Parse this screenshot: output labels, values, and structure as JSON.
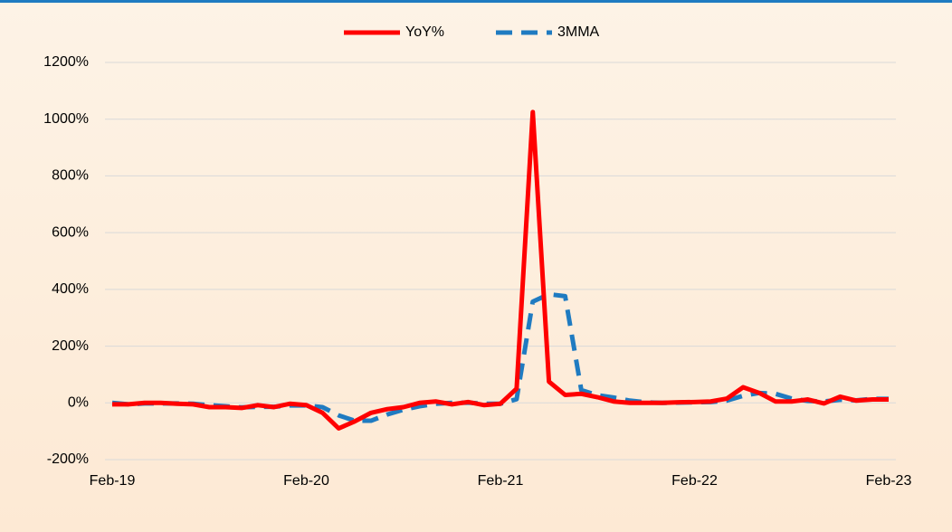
{
  "chart_data": {
    "type": "line",
    "categories": [
      "Feb-19",
      null,
      null,
      null,
      null,
      null,
      null,
      null,
      null,
      null,
      null,
      null,
      "Feb-20",
      null,
      null,
      null,
      null,
      null,
      null,
      null,
      null,
      null,
      null,
      null,
      "Feb-21",
      null,
      null,
      null,
      null,
      null,
      null,
      null,
      null,
      null,
      null,
      null,
      "Feb-22",
      null,
      null,
      null,
      null,
      null,
      null,
      null,
      null,
      null,
      null,
      null,
      "Feb-23"
    ],
    "series": [
      {
        "name": "YoY%",
        "color": "#ff0000",
        "dash": false,
        "values": [
          -5,
          -5,
          0,
          0,
          -3,
          -5,
          -15,
          -15,
          -18,
          -8,
          -15,
          -3,
          -8,
          -35,
          -90,
          -65,
          -35,
          -22,
          -15,
          0,
          5,
          -5,
          3,
          -8,
          -3,
          50,
          1025,
          75,
          28,
          32,
          20,
          5,
          0,
          0,
          0,
          2,
          3,
          5,
          15,
          55,
          35,
          5,
          5,
          12,
          -2,
          22,
          8,
          12,
          12
        ]
      },
      {
        "name": "3MMA",
        "color": "#1f7bc1",
        "dash": true,
        "values": [
          0,
          -5,
          -2,
          -2,
          -2,
          -3,
          -8,
          -12,
          -16,
          -14,
          -14,
          -9,
          -9,
          -15,
          -44,
          -63,
          -63,
          -41,
          -24,
          -12,
          -3,
          0,
          1,
          -3,
          -3,
          13,
          357,
          383,
          376,
          45,
          27,
          19,
          8,
          2,
          0,
          1,
          2,
          3,
          8,
          25,
          35,
          32,
          15,
          7,
          5,
          11,
          9,
          14,
          14
        ]
      }
    ],
    "ylim": [
      -200,
      1200
    ],
    "yticks": [
      {
        "value": -200,
        "label": "-200%"
      },
      {
        "value": 0,
        "label": "0%"
      },
      {
        "value": 200,
        "label": "200%"
      },
      {
        "value": 400,
        "label": "400%"
      },
      {
        "value": 600,
        "label": "600%"
      },
      {
        "value": 800,
        "label": "800%"
      },
      {
        "value": 1000,
        "label": "1000%"
      },
      {
        "value": 1200,
        "label": "1200%"
      }
    ],
    "grid": true,
    "legend": "top"
  }
}
